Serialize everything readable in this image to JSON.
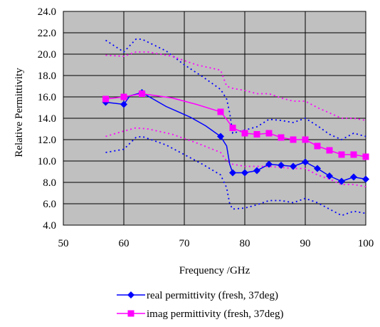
{
  "chart_data": {
    "type": "line",
    "title": "",
    "xlabel": "Frequency /GHz",
    "ylabel": "Relative Permittivity",
    "xlim": [
      50,
      100
    ],
    "ylim": [
      4.0,
      24.0
    ],
    "x_ticks": [
      50,
      60,
      70,
      80,
      90,
      100
    ],
    "y_ticks": [
      4.0,
      6.0,
      8.0,
      10.0,
      12.0,
      14.0,
      16.0,
      18.0,
      20.0,
      22.0,
      24.0
    ],
    "grid": "vertical and horizontal major gridlines",
    "plot_background": "#c0c0c0",
    "legend_position": "bottom-center",
    "series": [
      {
        "name": "real permittivity (fresh, 37deg)",
        "color": "#0000ff",
        "marker": "diamond",
        "points": [
          {
            "x": 57,
            "y": 15.5
          },
          {
            "x": 60,
            "y": 15.3
          },
          {
            "x": 63,
            "y": 16.4
          },
          {
            "x": 76,
            "y": 12.3
          },
          {
            "x": 78,
            "y": 8.9
          },
          {
            "x": 80,
            "y": 8.9
          },
          {
            "x": 82,
            "y": 9.1
          },
          {
            "x": 84,
            "y": 9.7
          },
          {
            "x": 86,
            "y": 9.6
          },
          {
            "x": 88,
            "y": 9.5
          },
          {
            "x": 90,
            "y": 9.9
          },
          {
            "x": 92,
            "y": 9.3
          },
          {
            "x": 94,
            "y": 8.6
          },
          {
            "x": 96,
            "y": 8.1
          },
          {
            "x": 98,
            "y": 8.5
          },
          {
            "x": 100,
            "y": 8.3
          }
        ],
        "curve": [
          {
            "x": 57,
            "y": 15.5
          },
          {
            "x": 60,
            "y": 15.3
          },
          {
            "x": 61,
            "y": 16.1
          },
          {
            "x": 63,
            "y": 16.4
          },
          {
            "x": 67,
            "y": 15.1
          },
          {
            "x": 71,
            "y": 14.1
          },
          {
            "x": 73.5,
            "y": 13.3
          },
          {
            "x": 76,
            "y": 12.3
          },
          {
            "x": 77,
            "y": 11.4
          },
          {
            "x": 77.5,
            "y": 9.7
          },
          {
            "x": 78,
            "y": 8.9
          }
        ],
        "upper_bound": [
          {
            "x": 57,
            "y": 21.3
          },
          {
            "x": 60,
            "y": 20.2
          },
          {
            "x": 62,
            "y": 21.4
          },
          {
            "x": 63,
            "y": 21.4
          },
          {
            "x": 67,
            "y": 20.3
          },
          {
            "x": 70,
            "y": 19.0
          },
          {
            "x": 73,
            "y": 17.9
          },
          {
            "x": 76,
            "y": 16.7
          },
          {
            "x": 77,
            "y": 15.8
          },
          {
            "x": 77.5,
            "y": 14.5
          },
          {
            "x": 78,
            "y": 12.6
          },
          {
            "x": 80,
            "y": 12.9
          },
          {
            "x": 82,
            "y": 13.2
          },
          {
            "x": 84,
            "y": 13.9
          },
          {
            "x": 86,
            "y": 13.8
          },
          {
            "x": 88,
            "y": 13.6
          },
          {
            "x": 90,
            "y": 14.0
          },
          {
            "x": 92,
            "y": 13.3
          },
          {
            "x": 94,
            "y": 12.5
          },
          {
            "x": 96,
            "y": 12.0
          },
          {
            "x": 98,
            "y": 12.6
          },
          {
            "x": 100,
            "y": 12.3
          }
        ],
        "lower_bound": [
          {
            "x": 57,
            "y": 10.8
          },
          {
            "x": 60,
            "y": 11.1
          },
          {
            "x": 62,
            "y": 12.2
          },
          {
            "x": 63,
            "y": 12.3
          },
          {
            "x": 67,
            "y": 11.5
          },
          {
            "x": 70,
            "y": 10.6
          },
          {
            "x": 73,
            "y": 9.7
          },
          {
            "x": 76,
            "y": 8.7
          },
          {
            "x": 77,
            "y": 7.5
          },
          {
            "x": 77.5,
            "y": 6.0
          },
          {
            "x": 78,
            "y": 5.5
          },
          {
            "x": 80,
            "y": 5.6
          },
          {
            "x": 82,
            "y": 5.9
          },
          {
            "x": 84,
            "y": 6.3
          },
          {
            "x": 86,
            "y": 6.3
          },
          {
            "x": 88,
            "y": 6.1
          },
          {
            "x": 90,
            "y": 6.5
          },
          {
            "x": 92,
            "y": 6.1
          },
          {
            "x": 94,
            "y": 5.5
          },
          {
            "x": 96,
            "y": 4.9
          },
          {
            "x": 98,
            "y": 5.3
          },
          {
            "x": 100,
            "y": 5.1
          }
        ]
      },
      {
        "name": "imag permittivity (fresh, 37deg)",
        "color": "#ff00ff",
        "marker": "square",
        "points": [
          {
            "x": 57,
            "y": 15.8
          },
          {
            "x": 60,
            "y": 16.0
          },
          {
            "x": 63,
            "y": 16.3
          },
          {
            "x": 76,
            "y": 14.6
          },
          {
            "x": 78,
            "y": 13.1
          },
          {
            "x": 80,
            "y": 12.6
          },
          {
            "x": 82,
            "y": 12.5
          },
          {
            "x": 84,
            "y": 12.6
          },
          {
            "x": 86,
            "y": 12.2
          },
          {
            "x": 88,
            "y": 12.0
          },
          {
            "x": 90,
            "y": 12.0
          },
          {
            "x": 92,
            "y": 11.4
          },
          {
            "x": 94,
            "y": 11.0
          },
          {
            "x": 96,
            "y": 10.6
          },
          {
            "x": 98,
            "y": 10.6
          },
          {
            "x": 100,
            "y": 10.4
          }
        ],
        "curve": [
          {
            "x": 57,
            "y": 15.8
          },
          {
            "x": 60,
            "y": 16.0
          },
          {
            "x": 63,
            "y": 16.3
          },
          {
            "x": 68,
            "y": 15.9
          },
          {
            "x": 72,
            "y": 15.3
          },
          {
            "x": 76,
            "y": 14.6
          },
          {
            "x": 77,
            "y": 13.9
          },
          {
            "x": 78,
            "y": 13.1
          }
        ],
        "upper_bound": [
          {
            "x": 57,
            "y": 19.9
          },
          {
            "x": 60,
            "y": 19.8
          },
          {
            "x": 62,
            "y": 20.2
          },
          {
            "x": 64,
            "y": 20.2
          },
          {
            "x": 68,
            "y": 19.8
          },
          {
            "x": 72,
            "y": 19.0
          },
          {
            "x": 76,
            "y": 18.5
          },
          {
            "x": 77,
            "y": 17.0
          },
          {
            "x": 78,
            "y": 16.8
          },
          {
            "x": 80,
            "y": 16.6
          },
          {
            "x": 82,
            "y": 16.3
          },
          {
            "x": 84,
            "y": 16.3
          },
          {
            "x": 86,
            "y": 15.9
          },
          {
            "x": 88,
            "y": 15.6
          },
          {
            "x": 90,
            "y": 15.6
          },
          {
            "x": 92,
            "y": 15.0
          },
          {
            "x": 94,
            "y": 14.5
          },
          {
            "x": 96,
            "y": 14.0
          },
          {
            "x": 98,
            "y": 14.0
          },
          {
            "x": 100,
            "y": 13.8
          }
        ],
        "lower_bound": [
          {
            "x": 57,
            "y": 12.3
          },
          {
            "x": 60,
            "y": 12.8
          },
          {
            "x": 62,
            "y": 13.1
          },
          {
            "x": 64,
            "y": 13.0
          },
          {
            "x": 68,
            "y": 12.5
          },
          {
            "x": 72,
            "y": 11.7
          },
          {
            "x": 76,
            "y": 10.8
          },
          {
            "x": 77,
            "y": 10.0
          },
          {
            "x": 78,
            "y": 9.7
          },
          {
            "x": 80,
            "y": 9.5
          },
          {
            "x": 82,
            "y": 9.5
          },
          {
            "x": 84,
            "y": 9.5
          },
          {
            "x": 86,
            "y": 9.4
          },
          {
            "x": 88,
            "y": 9.3
          },
          {
            "x": 90,
            "y": 9.3
          },
          {
            "x": 92,
            "y": 8.7
          },
          {
            "x": 94,
            "y": 8.3
          },
          {
            "x": 96,
            "y": 7.8
          },
          {
            "x": 98,
            "y": 7.8
          },
          {
            "x": 100,
            "y": 7.6
          }
        ]
      }
    ]
  }
}
